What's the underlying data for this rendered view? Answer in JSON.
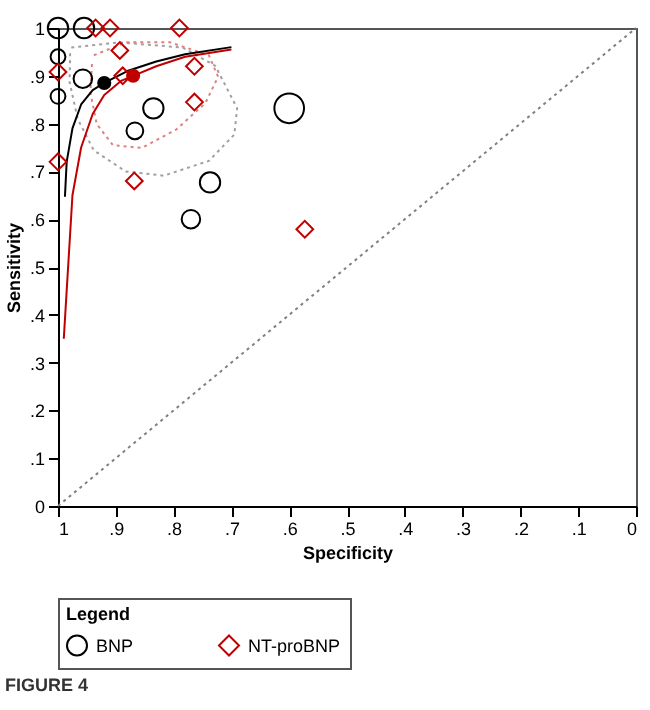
{
  "chart_data": {
    "type": "scatter",
    "xlabel": "Specificity",
    "ylabel": "Sensitivity",
    "legend_title": "Legend",
    "legend": "bottom",
    "grid": false,
    "annotations": [
      "FIGURE 4"
    ],
    "xlim": [
      1,
      0
    ],
    "xticks": [
      1,
      {
        "value": 0.9,
        "label": ".9"
      },
      {
        "value": 0.8,
        "label": ".8"
      },
      {
        "value": 0.7,
        "label": ".7"
      },
      {
        "value": 0.6,
        "label": ".6"
      },
      {
        "value": 0.5,
        "label": ".5"
      },
      {
        "value": 0.4,
        "label": ".4"
      },
      {
        "value": 0.3,
        "label": ".3"
      },
      {
        "value": 0.2,
        "label": ".2"
      },
      {
        "value": 0.1,
        "label": ".1"
      },
      0
    ],
    "ylim": [
      0,
      1
    ],
    "yticks": [
      0,
      {
        "value": 0.1,
        "label": ".1"
      },
      {
        "value": 0.2,
        "label": ".2"
      },
      {
        "value": 0.3,
        "label": ".3"
      },
      {
        "value": 0.4,
        "label": ".4"
      },
      {
        "value": 0.5,
        "label": ".5"
      },
      {
        "value": 0.6,
        "label": ".6"
      },
      {
        "value": 0.7,
        "label": ".7"
      },
      {
        "value": 0.8,
        "label": ".8"
      },
      {
        "value": 0.9,
        "label": ".9"
      },
      1
    ],
    "series": [
      {
        "type": "line",
        "color": "#808080",
        "line_style": "dotted",
        "x": [
          1,
          0
        ],
        "values": [
          0,
          1
        ]
      },
      {
        "type": "line",
        "color": "#a0a0a0",
        "line_style": "dotted",
        "x": [
          0.977,
          0.894,
          0.784,
          0.728,
          0.69,
          0.695,
          0.739,
          0.817,
          0.883,
          0.938,
          0.966,
          0.98,
          0.979
        ],
        "values": [
          0.959,
          0.97,
          0.959,
          0.921,
          0.832,
          0.777,
          0.722,
          0.691,
          0.7,
          0.744,
          0.81,
          0.887,
          0.947
        ]
      },
      {
        "type": "line",
        "color": "#e08080",
        "line_style": "dotted",
        "x": [
          0.938,
          0.883,
          0.806,
          0.739,
          0.723,
          0.745,
          0.795,
          0.855,
          0.905,
          0.933,
          0.944,
          0.941
        ],
        "values": [
          0.943,
          0.97,
          0.97,
          0.943,
          0.898,
          0.843,
          0.788,
          0.749,
          0.755,
          0.799,
          0.865,
          0.93
        ]
      },
      {
        "type": "line",
        "color": "#000000",
        "line_style": "solid",
        "x": [
          0.988,
          0.985,
          0.975,
          0.96,
          0.94,
          0.92,
          0.88,
          0.83,
          0.78,
          0.7
        ],
        "values": [
          0.647,
          0.72,
          0.79,
          0.84,
          0.87,
          0.885,
          0.91,
          0.93,
          0.945,
          0.96
        ]
      },
      {
        "type": "line",
        "color": "#c00000",
        "line_style": "solid",
        "x": [
          0.99,
          0.985,
          0.98,
          0.975,
          0.96,
          0.94,
          0.92,
          0.89,
          0.87,
          0.83,
          0.78,
          0.7
        ],
        "values": [
          0.35,
          0.45,
          0.55,
          0.65,
          0.75,
          0.82,
          0.86,
          0.89,
          0.9,
          0.92,
          0.94,
          0.955
        ]
      },
      {
        "type": "bubble",
        "name": "BNP",
        "color": "#000000",
        "marker": "circle",
        "x": [
          1.0,
          0.955,
          1.0,
          0.957,
          1.0,
          0.835,
          0.867,
          0.6,
          0.737,
          0.77
        ],
        "values": [
          1.0,
          1.0,
          0.94,
          0.894,
          0.857,
          0.832,
          0.785,
          0.832,
          0.677,
          0.6
        ],
        "sizes": [
          0.47,
          0.47,
          0.25,
          0.39,
          0.25,
          0.47,
          0.32,
          1,
          0.47,
          0.39
        ]
      },
      {
        "type": "scatter",
        "name": "NT-proBNP",
        "color": "#c00000",
        "marker": "diamond",
        "x": [
          0.935,
          0.91,
          0.79,
          0.893,
          1.0,
          0.764,
          0.764,
          0.888,
          1.0,
          0.868,
          0.573
        ],
        "values": [
          1.0,
          1.0,
          1.0,
          0.953,
          0.908,
          0.92,
          0.845,
          0.9,
          0.72,
          0.68,
          0.579
        ]
      },
      {
        "type": "scatter",
        "color": "#000000",
        "marker": "circle",
        "x": [
          0.92
        ],
        "values": [
          0.885
        ]
      },
      {
        "type": "scatter",
        "color": "#c00000",
        "marker": "circle",
        "x": [
          0.87
        ],
        "values": [
          0.9
        ]
      }
    ]
  }
}
